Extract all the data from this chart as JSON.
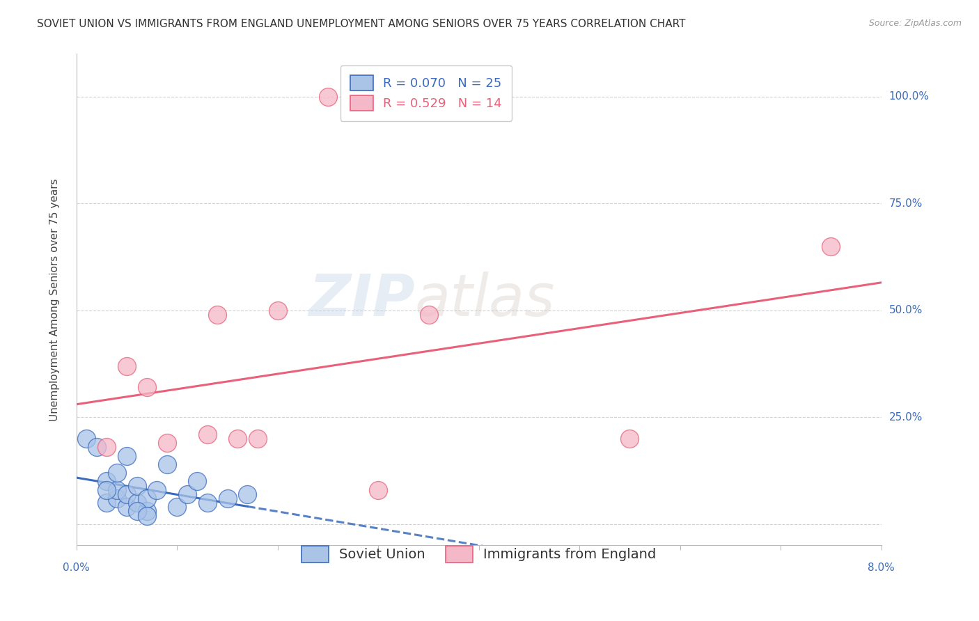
{
  "title": "SOVIET UNION VS IMMIGRANTS FROM ENGLAND UNEMPLOYMENT AMONG SENIORS OVER 75 YEARS CORRELATION CHART",
  "source": "Source: ZipAtlas.com",
  "ylabel": "Unemployment Among Seniors over 75 years",
  "watermark": "ZIPatlas",
  "soviet_x": [
    0.001,
    0.002,
    0.003,
    0.003,
    0.004,
    0.004,
    0.005,
    0.005,
    0.006,
    0.006,
    0.007,
    0.007,
    0.008,
    0.009,
    0.01,
    0.011,
    0.012,
    0.013,
    0.015,
    0.017,
    0.004,
    0.005,
    0.006,
    0.007,
    0.003
  ],
  "soviet_y": [
    0.2,
    0.18,
    0.05,
    0.1,
    0.06,
    0.08,
    0.04,
    0.07,
    0.05,
    0.09,
    0.03,
    0.06,
    0.08,
    0.14,
    0.04,
    0.07,
    0.1,
    0.05,
    0.06,
    0.07,
    0.12,
    0.16,
    0.03,
    0.02,
    0.08
  ],
  "england_x": [
    0.003,
    0.005,
    0.007,
    0.009,
    0.013,
    0.014,
    0.016,
    0.018,
    0.02,
    0.025,
    0.03,
    0.035,
    0.055,
    0.075
  ],
  "england_y": [
    0.18,
    0.37,
    0.32,
    0.19,
    0.21,
    0.49,
    0.2,
    0.2,
    0.5,
    1.0,
    0.08,
    0.49,
    0.2,
    0.65
  ],
  "soviet_R": 0.07,
  "soviet_N": 25,
  "england_R": 0.529,
  "england_N": 14,
  "soviet_color": "#aac4e8",
  "soviet_line_color": "#3a6bbf",
  "england_color": "#f5b8c8",
  "england_line_color": "#e8607a",
  "xlim": [
    0.0,
    0.08
  ],
  "ylim": [
    -0.05,
    1.1
  ],
  "yticks": [
    0.0,
    0.25,
    0.5,
    0.75,
    1.0
  ],
  "background_color": "#ffffff",
  "grid_color": "#cccccc",
  "title_fontsize": 11,
  "source_fontsize": 9,
  "legend_fontsize": 13,
  "axis_label_fontsize": 11,
  "tick_label_fontsize": 11
}
